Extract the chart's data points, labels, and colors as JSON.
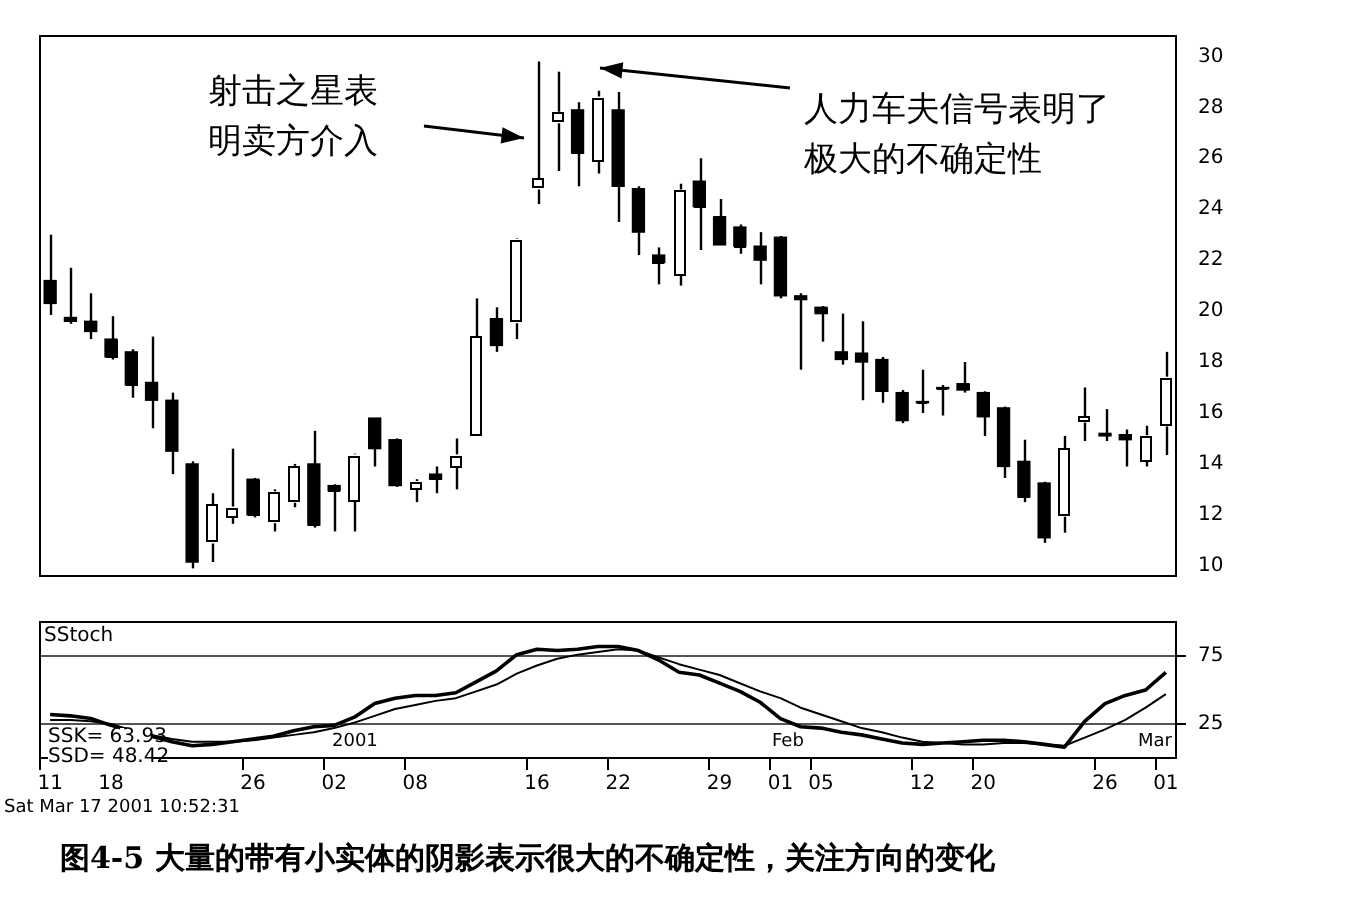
{
  "chart_data": [
    {
      "type": "candlestick",
      "categories": [
        null,
        null,
        null,
        null,
        null,
        null,
        null,
        null,
        null,
        null,
        null,
        null,
        null,
        null,
        null,
        null,
        null,
        null,
        null,
        null,
        null,
        null,
        null,
        null,
        null,
        null,
        null,
        null,
        null,
        null,
        null,
        null,
        null,
        null,
        null,
        null,
        null,
        null,
        null,
        null,
        null,
        null,
        null,
        null,
        null,
        null,
        null,
        null,
        null,
        null,
        null,
        null,
        null,
        null,
        null,
        null
      ],
      "ohlc": [
        [
          21.2,
          23.0,
          19.85,
          20.3
        ],
        [
          19.75,
          21.7,
          19.5,
          19.6
        ],
        [
          19.6,
          20.7,
          18.9,
          19.2
        ],
        [
          18.9,
          19.8,
          18.1,
          18.2
        ],
        [
          18.4,
          18.5,
          16.6,
          17.1
        ],
        [
          17.2,
          19.0,
          15.4,
          16.5
        ],
        [
          16.5,
          16.8,
          13.6,
          14.5
        ],
        [
          14.0,
          14.1,
          9.9,
          10.15
        ],
        [
          10.9,
          12.85,
          10.15,
          12.4
        ],
        [
          11.9,
          14.6,
          11.65,
          12.3
        ],
        [
          13.4,
          13.45,
          11.9,
          12.0
        ],
        [
          11.7,
          13.0,
          11.35,
          12.9
        ],
        [
          12.5,
          14.0,
          12.3,
          13.9
        ],
        [
          14.0,
          15.3,
          11.5,
          11.6
        ],
        [
          13.15,
          13.2,
          11.35,
          12.95
        ],
        [
          12.55,
          14.4,
          11.35,
          14.35
        ],
        [
          15.8,
          15.8,
          13.9,
          14.6
        ],
        [
          14.95,
          15.0,
          13.1,
          13.15
        ],
        [
          13.0,
          13.4,
          12.5,
          13.3
        ],
        [
          13.6,
          13.9,
          12.85,
          13.4
        ],
        [
          13.9,
          15.0,
          13.0,
          14.35
        ],
        [
          15.1,
          20.5,
          15.1,
          19.0
        ],
        [
          19.7,
          20.15,
          18.4,
          18.65
        ],
        [
          19.55,
          22.85,
          18.9,
          22.8
        ],
        [
          24.8,
          29.8,
          24.2,
          25.2
        ],
        [
          27.4,
          29.4,
          25.5,
          27.8
        ],
        [
          27.9,
          28.2,
          24.9,
          26.2
        ],
        [
          25.9,
          28.65,
          25.4,
          28.4
        ],
        [
          27.9,
          28.6,
          23.5,
          24.9
        ],
        [
          24.8,
          24.9,
          22.2,
          23.1
        ],
        [
          22.2,
          22.5,
          21.05,
          21.9
        ],
        [
          21.4,
          25.0,
          21.0,
          24.75
        ],
        [
          25.1,
          26.0,
          22.4,
          24.1
        ],
        [
          23.7,
          24.4,
          22.6,
          22.6
        ],
        [
          23.3,
          23.4,
          22.25,
          22.55
        ],
        [
          22.55,
          23.1,
          21.05,
          22.0
        ],
        [
          22.9,
          22.95,
          20.5,
          20.6
        ],
        [
          20.6,
          20.7,
          17.7,
          20.45
        ],
        [
          20.15,
          20.2,
          18.8,
          19.9
        ],
        [
          18.4,
          19.9,
          17.9,
          18.1
        ],
        [
          18.35,
          19.6,
          16.5,
          18.0
        ],
        [
          18.1,
          18.2,
          16.4,
          16.85
        ],
        [
          16.8,
          16.9,
          15.6,
          15.7
        ],
        [
          16.45,
          17.7,
          16.0,
          16.4
        ],
        [
          17.0,
          17.1,
          15.9,
          16.95
        ],
        [
          17.15,
          18.0,
          16.8,
          16.9
        ],
        [
          16.8,
          16.85,
          15.1,
          15.85
        ],
        [
          16.2,
          16.25,
          13.45,
          13.9
        ],
        [
          14.1,
          14.95,
          12.5,
          12.7
        ],
        [
          13.25,
          13.3,
          10.9,
          11.1
        ],
        [
          11.95,
          15.1,
          11.3,
          14.6
        ],
        [
          15.65,
          17.0,
          14.9,
          15.85
        ],
        [
          15.2,
          16.15,
          14.9,
          15.1
        ],
        [
          15.15,
          15.35,
          13.9,
          14.95
        ],
        [
          14.1,
          15.5,
          13.9,
          15.1
        ],
        [
          15.5,
          18.4,
          14.35,
          17.4
        ]
      ],
      "colors": [
        "#000000",
        "#000000",
        "#000000",
        "#000000",
        "#000000",
        "#000000",
        "#000000",
        "#000000",
        "#ffffff",
        "#ffffff",
        "#000000",
        "#ffffff",
        "#ffffff",
        "#000000",
        "#000000",
        "#ffffff",
        "#000000",
        "#000000",
        "#ffffff",
        "#000000",
        "#ffffff",
        "#ffffff",
        "#000000",
        "#ffffff",
        "#ffffff",
        "#ffffff",
        "#000000",
        "#ffffff",
        "#000000",
        "#000000",
        "#000000",
        "#ffffff",
        "#000000",
        "#000000",
        "#000000",
        "#000000",
        "#000000",
        "#000000",
        "#000000",
        "#000000",
        "#000000",
        "#000000",
        "#000000",
        "#000000",
        "#000000",
        "#000000",
        "#000000",
        "#000000",
        "#000000",
        "#000000",
        "#ffffff",
        "#ffffff",
        "#000000",
        "#000000",
        "#ffffff",
        "#ffffff"
      ],
      "ylim": [
        9.6,
        30.8
      ],
      "yticks": [
        10,
        12,
        14,
        16,
        18,
        20,
        22,
        24,
        26,
        28,
        30
      ],
      "tick_labels": "y",
      "annotations": [
        "射击之星表明卖方介入",
        "人力车夫信号表明了极大的不确定性"
      ]
    },
    {
      "type": "line",
      "title": "SStoch",
      "categories": [
        "11",
        null,
        null,
        "18",
        null,
        null,
        null,
        null,
        null,
        null,
        "26",
        null,
        null,
        null,
        "02",
        null,
        null,
        null,
        "08",
        null,
        null,
        null,
        null,
        null,
        "16",
        null,
        null,
        null,
        "22",
        null,
        null,
        null,
        null,
        "29",
        null,
        null,
        "01",
        null,
        "05",
        null,
        null,
        null,
        null,
        "12",
        null,
        null,
        "20",
        null,
        null,
        null,
        null,
        null,
        "26",
        null,
        null,
        "01"
      ],
      "series": [
        {
          "color": "#000000",
          "values": [
            32,
            31,
            29,
            24,
            20,
            16,
            12,
            9,
            10,
            12,
            14,
            16,
            20,
            23,
            24,
            30,
            40,
            44,
            46,
            46,
            48,
            56,
            64,
            76,
            80,
            79,
            80,
            82,
            82,
            79,
            72,
            63,
            61,
            55,
            49,
            41,
            29,
            23,
            22,
            19,
            17,
            14,
            11,
            10,
            11,
            12,
            13,
            13,
            12,
            10,
            8,
            27,
            40,
            46,
            50,
            63
          ]
        },
        {
          "color": "#000000",
          "values": [
            28,
            28,
            27,
            25,
            20,
            17,
            14,
            12,
            12,
            12,
            13,
            15,
            17,
            19,
            22,
            26,
            31,
            36,
            39,
            42,
            44,
            49,
            54,
            62,
            68,
            73,
            76,
            78,
            80,
            79,
            74,
            69,
            65,
            61,
            55,
            49,
            44,
            37,
            32,
            27,
            22,
            19,
            15,
            12,
            11,
            10,
            10,
            11,
            11,
            10,
            9,
            15,
            21,
            28,
            37,
            47
          ]
        }
      ],
      "ylim": [
        0,
        100
      ],
      "yticks": [
        25,
        75
      ],
      "grid": "y",
      "annotations": [
        "SSK= 63.93",
        "SSD= 48.42",
        "2001",
        "Feb",
        "Mar",
        "Sat Mar 17 2001 10:52:31",
        "图4-5  大量的带有小实体的阴影表示很大的不确定性，关注方向的变化"
      ]
    }
  ]
}
